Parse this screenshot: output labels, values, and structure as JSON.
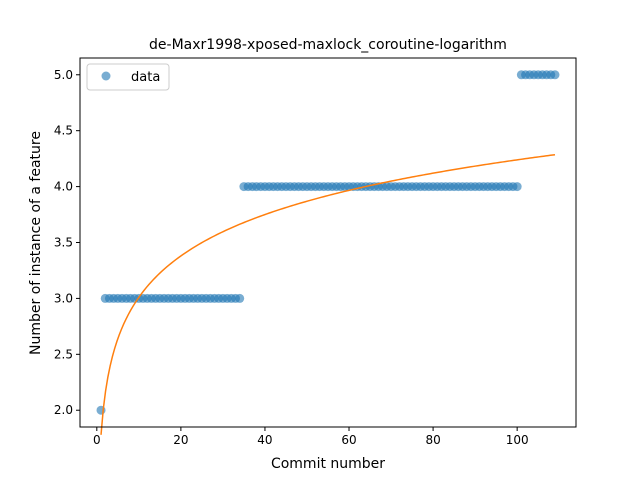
{
  "chart_data": {
    "type": "scatter",
    "title": "de-Maxr1998-xposed-maxlock_coroutine-logarithm",
    "xlabel": "Commit number",
    "ylabel": "Number of instance of a feature",
    "xlim": [
      -4,
      114
    ],
    "ylim": [
      1.85,
      5.15
    ],
    "xticks": [
      0,
      20,
      40,
      60,
      80,
      100
    ],
    "yticks": [
      2.0,
      2.5,
      3.0,
      3.5,
      4.0,
      4.5,
      5.0
    ],
    "ytick_labels": [
      "2.0",
      "2.5",
      "3.0",
      "3.5",
      "4.0",
      "4.5",
      "5.0"
    ],
    "legend": {
      "position": "top-left",
      "entries": [
        "data"
      ]
    },
    "grid": false,
    "colors": {
      "data": "#1f77b4",
      "fit": "#ff7f0e"
    },
    "series": [
      {
        "name": "data",
        "kind": "scatter",
        "segments": [
          {
            "x_start": 1,
            "x_end": 1,
            "y": 2
          },
          {
            "x_start": 2,
            "x_end": 34,
            "y": 3
          },
          {
            "x_start": 35,
            "x_end": 100,
            "y": 4
          },
          {
            "x_start": 101,
            "x_end": 109,
            "y": 5
          }
        ]
      },
      {
        "kind": "line",
        "model": "a + b*ln(x)",
        "a": 1.78,
        "b": 0.534,
        "x_range": [
          1,
          109
        ]
      }
    ]
  }
}
